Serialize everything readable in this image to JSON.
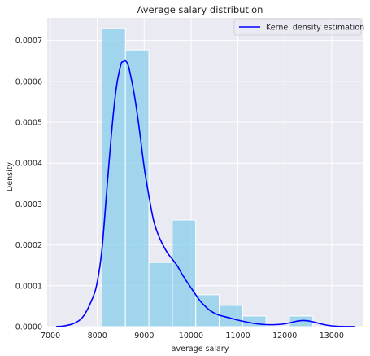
{
  "chart_data": {
    "type": "bar",
    "title": "Average salary distribution",
    "xlabel": "average salary",
    "ylabel": "Density",
    "xlim": [
      6930,
      13680
    ],
    "ylim": [
      0,
      0.000755
    ],
    "x_ticks": [
      7000,
      8000,
      9000,
      10000,
      11000,
      12000,
      13000
    ],
    "x_tick_labels": [
      "7000",
      "8000",
      "9000",
      "10000",
      "11000",
      "12000",
      "13000"
    ],
    "y_ticks": [
      0,
      0.0001,
      0.0002,
      0.0003,
      0.0004,
      0.0005,
      0.0006,
      0.0007
    ],
    "y_tick_labels": [
      "0.0000",
      "0.0001",
      "0.0002",
      "0.0003",
      "0.0004",
      "0.0005",
      "0.0006",
      "0.0007"
    ],
    "grid": true,
    "background": "#eaeaf2",
    "bar_color": "#87ceeb",
    "bar_edge_color": "#ffffff",
    "histogram": {
      "bin_edges": [
        8100,
        8600,
        9100,
        9600,
        10100,
        10600,
        11100,
        11600,
        12100,
        12600
      ],
      "values": [
        0.000729,
        0.000677,
        0.000157,
        0.000261,
        7.8e-05,
        5.2e-05,
        2.6e-05,
        0,
        2.6e-05
      ]
    },
    "kde": {
      "name": "Kernel density estimation",
      "color": "#0000ff",
      "x": [
        7120,
        7300,
        7500,
        7700,
        7900,
        8000,
        8100,
        8200,
        8300,
        8400,
        8500,
        8550,
        8600,
        8650,
        8700,
        8800,
        8900,
        9000,
        9100,
        9200,
        9300,
        9400,
        9500,
        9600,
        9700,
        9800,
        9900,
        10000,
        10100,
        10200,
        10300,
        10400,
        10500,
        10600,
        10700,
        10800,
        10900,
        11000,
        11200,
        11400,
        11600,
        11800,
        12000,
        12200,
        12300,
        12400,
        12500,
        12600,
        12800,
        13000,
        13200,
        13500
      ],
      "y": [
        0,
        2e-06,
        8e-06,
        2.5e-05,
        7e-05,
        0.00011,
        0.00019,
        0.00033,
        0.00047,
        0.00058,
        0.00064,
        0.000648,
        0.00065,
        0.000642,
        0.00062,
        0.00056,
        0.00048,
        0.00039,
        0.00032,
        0.00026,
        0.000225,
        0.0002,
        0.00018,
        0.000165,
        0.00015,
        0.00013,
        0.000112,
        9.5e-05,
        7.8e-05,
        6.2e-05,
        5e-05,
        4e-05,
        3.3e-05,
        2.8e-05,
        2.5e-05,
        2.2e-05,
        1.9e-05,
        1.6e-05,
        1.1e-05,
        7e-06,
        5e-06,
        5e-06,
        7e-06,
        1.2e-05,
        1.4e-05,
        1.5e-05,
        1.4e-05,
        1.2e-05,
        6e-06,
        2e-06,
        5e-07,
        0
      ]
    },
    "legend": {
      "placement": "top-right",
      "entries": [
        "Kernel density estimation"
      ]
    }
  }
}
